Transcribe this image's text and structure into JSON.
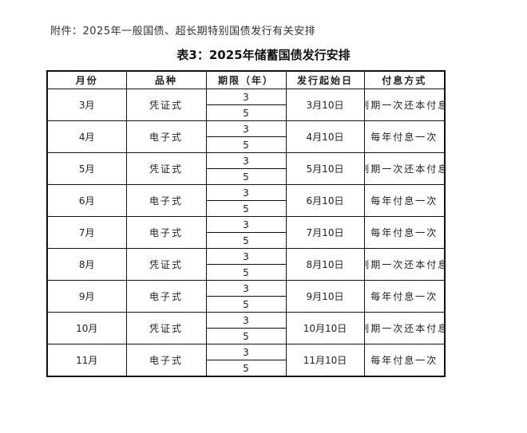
{
  "attachment": "附件：2025年一般国债、超长期特别国债发行有关安排",
  "title": "表3：2025年储蓄国债发行安排",
  "headers": [
    "月份",
    "品种",
    "期限（年）",
    "发行起始日",
    "付息方式"
  ],
  "rows": [
    {
      "month": "3月",
      "type": "凭证式",
      "terms": [
        "3",
        "5"
      ],
      "start": "3月10日",
      "payment": "到期一次还本付息"
    },
    {
      "month": "4月",
      "type": "电子式",
      "terms": [
        "3",
        "5"
      ],
      "start": "4月10日",
      "payment": "每年付息一次"
    },
    {
      "month": "5月",
      "type": "凭证式",
      "terms": [
        "3",
        "5"
      ],
      "start": "5月10日",
      "payment": "到期一次还本付息"
    },
    {
      "month": "6月",
      "type": "电子式",
      "terms": [
        "3",
        "5"
      ],
      "start": "6月10日",
      "payment": "每年付息一次"
    },
    {
      "month": "7月",
      "type": "电子式",
      "terms": [
        "3",
        "5"
      ],
      "start": "7月10日",
      "payment": "每年付息一次"
    },
    {
      "month": "8月",
      "type": "凭证式",
      "terms": [
        "3",
        "5"
      ],
      "start": "8月10日",
      "payment": "到期一次还本付息"
    },
    {
      "month": "9月",
      "type": "电子式",
      "terms": [
        "3",
        "5"
      ],
      "start": "9月10日",
      "payment": "每年付息一次"
    },
    {
      "month": "10月",
      "type": "凭证式",
      "terms": [
        "3",
        "5"
      ],
      "start": "10月10日",
      "payment": "到期一次还本付息"
    },
    {
      "month": "11月",
      "type": "电子式",
      "terms": [
        "3",
        "5"
      ],
      "start": "11月10日",
      "payment": "每年付息一次"
    }
  ]
}
